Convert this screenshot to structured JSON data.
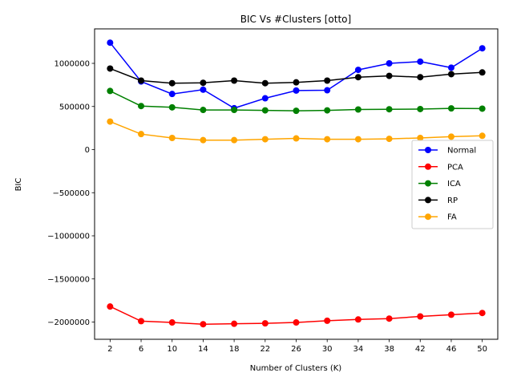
{
  "chart_data": {
    "type": "line",
    "title": "BIC Vs #Clusters [otto]",
    "xlabel": "Number of Clusters (K)",
    "ylabel": "BIC",
    "x": [
      2,
      6,
      10,
      14,
      18,
      22,
      26,
      30,
      34,
      38,
      42,
      46,
      50
    ],
    "ylim": [
      -2200000,
      1400000
    ],
    "yticks": [
      1000000,
      500000,
      0,
      -500000,
      -1000000,
      -1500000,
      -2000000
    ],
    "ytick_labels": [
      "1000000",
      "500000",
      "0",
      "−500000",
      "−1000000",
      "−1500000",
      "−2000000"
    ],
    "grid": false,
    "legend_position": "center-right",
    "series": [
      {
        "name": "Normal",
        "color": "#0000ff",
        "values": [
          1240000,
          790000,
          645000,
          695000,
          480000,
          595000,
          685000,
          688000,
          925000,
          1000000,
          1020000,
          950000,
          1175000
        ]
      },
      {
        "name": "PCA",
        "color": "#ff0000",
        "values": [
          -1820000,
          -1990000,
          -2005000,
          -2025000,
          -2020000,
          -2015000,
          -2005000,
          -1985000,
          -1970000,
          -1960000,
          -1935000,
          -1915000,
          -1895000
        ]
      },
      {
        "name": "ICA",
        "color": "#008000",
        "values": [
          680000,
          505000,
          490000,
          460000,
          460000,
          455000,
          450000,
          455000,
          465000,
          468000,
          470000,
          478000,
          475000
        ]
      },
      {
        "name": "RP",
        "color": "#000000",
        "values": [
          940000,
          800000,
          770000,
          775000,
          800000,
          770000,
          780000,
          800000,
          840000,
          855000,
          840000,
          875000,
          895000
        ]
      },
      {
        "name": "FA",
        "color": "#ffa500",
        "values": [
          325000,
          180000,
          135000,
          110000,
          110000,
          120000,
          130000,
          120000,
          120000,
          125000,
          135000,
          150000,
          160000
        ]
      }
    ]
  }
}
